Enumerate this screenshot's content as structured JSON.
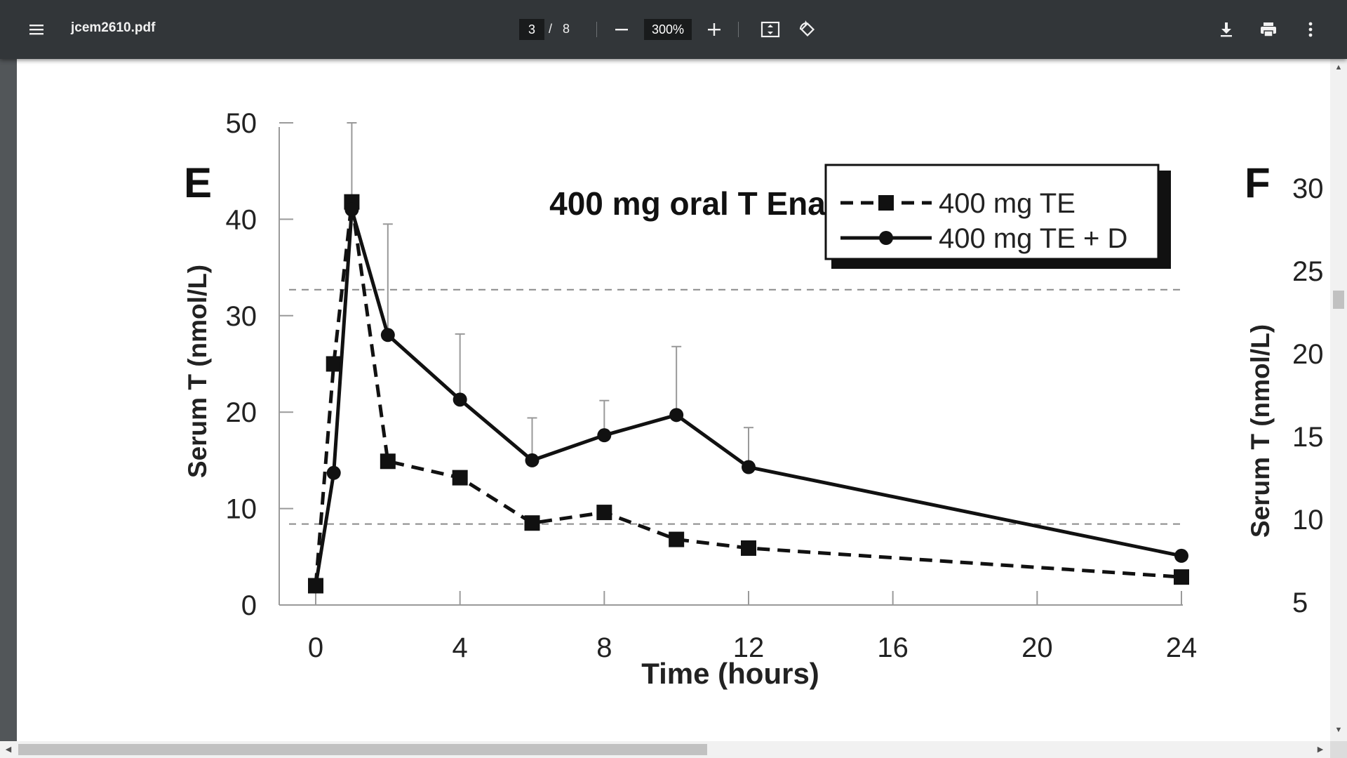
{
  "toolbar": {
    "file_name": "jcem2610.pdf",
    "current_page": "3",
    "page_separator": "/",
    "total_pages": "8",
    "zoom": "300%",
    "icons": [
      "menu-icon",
      "zoom-out-icon",
      "zoom-in-icon",
      "fit-to-page-icon",
      "rotate-icon",
      "download-icon",
      "print-icon",
      "more-vert-icon"
    ]
  },
  "document": {
    "panel_e_letter": "E",
    "panel_f_letter": "F",
    "panel_f_ylabel": "Serum T (nmol/L)",
    "panel_f_ticks": [
      "30",
      "25",
      "20",
      "15",
      "10",
      "5"
    ]
  },
  "chart_data": {
    "type": "line",
    "title": "400 mg oral T Enanthate",
    "xlabel": "Time (hours)",
    "ylabel": "Serum T (nmol/L)",
    "xlim": [
      0,
      24
    ],
    "ylim": [
      0,
      50
    ],
    "x_ticks": [
      0,
      4,
      8,
      12,
      16,
      20,
      24
    ],
    "y_ticks": [
      0,
      10,
      20,
      30,
      40,
      50
    ],
    "reference_lines": [
      32.7,
      8.4
    ],
    "legend_position": "top-right",
    "series": [
      {
        "name": "400 mg TE",
        "style": "dashed",
        "marker": "square",
        "x": [
          0,
          0.5,
          1,
          2,
          4,
          6,
          8,
          10,
          12,
          24
        ],
        "y": [
          2.0,
          25.0,
          41.8,
          14.9,
          13.2,
          8.5,
          9.6,
          6.8,
          5.9,
          2.9
        ],
        "error_upper": [
          null,
          null,
          50,
          null,
          null,
          null,
          null,
          null,
          null,
          null
        ]
      },
      {
        "name": "400 mg TE + D",
        "style": "solid",
        "marker": "circle",
        "x": [
          0,
          0.5,
          1,
          2,
          4,
          6,
          8,
          10,
          12,
          24
        ],
        "y": [
          2.0,
          13.7,
          41.0,
          28.0,
          21.3,
          15.0,
          17.6,
          19.7,
          14.3,
          5.1
        ],
        "error_upper": [
          null,
          null,
          null,
          39.5,
          28.1,
          19.4,
          21.2,
          26.8,
          18.4,
          null
        ]
      }
    ]
  }
}
